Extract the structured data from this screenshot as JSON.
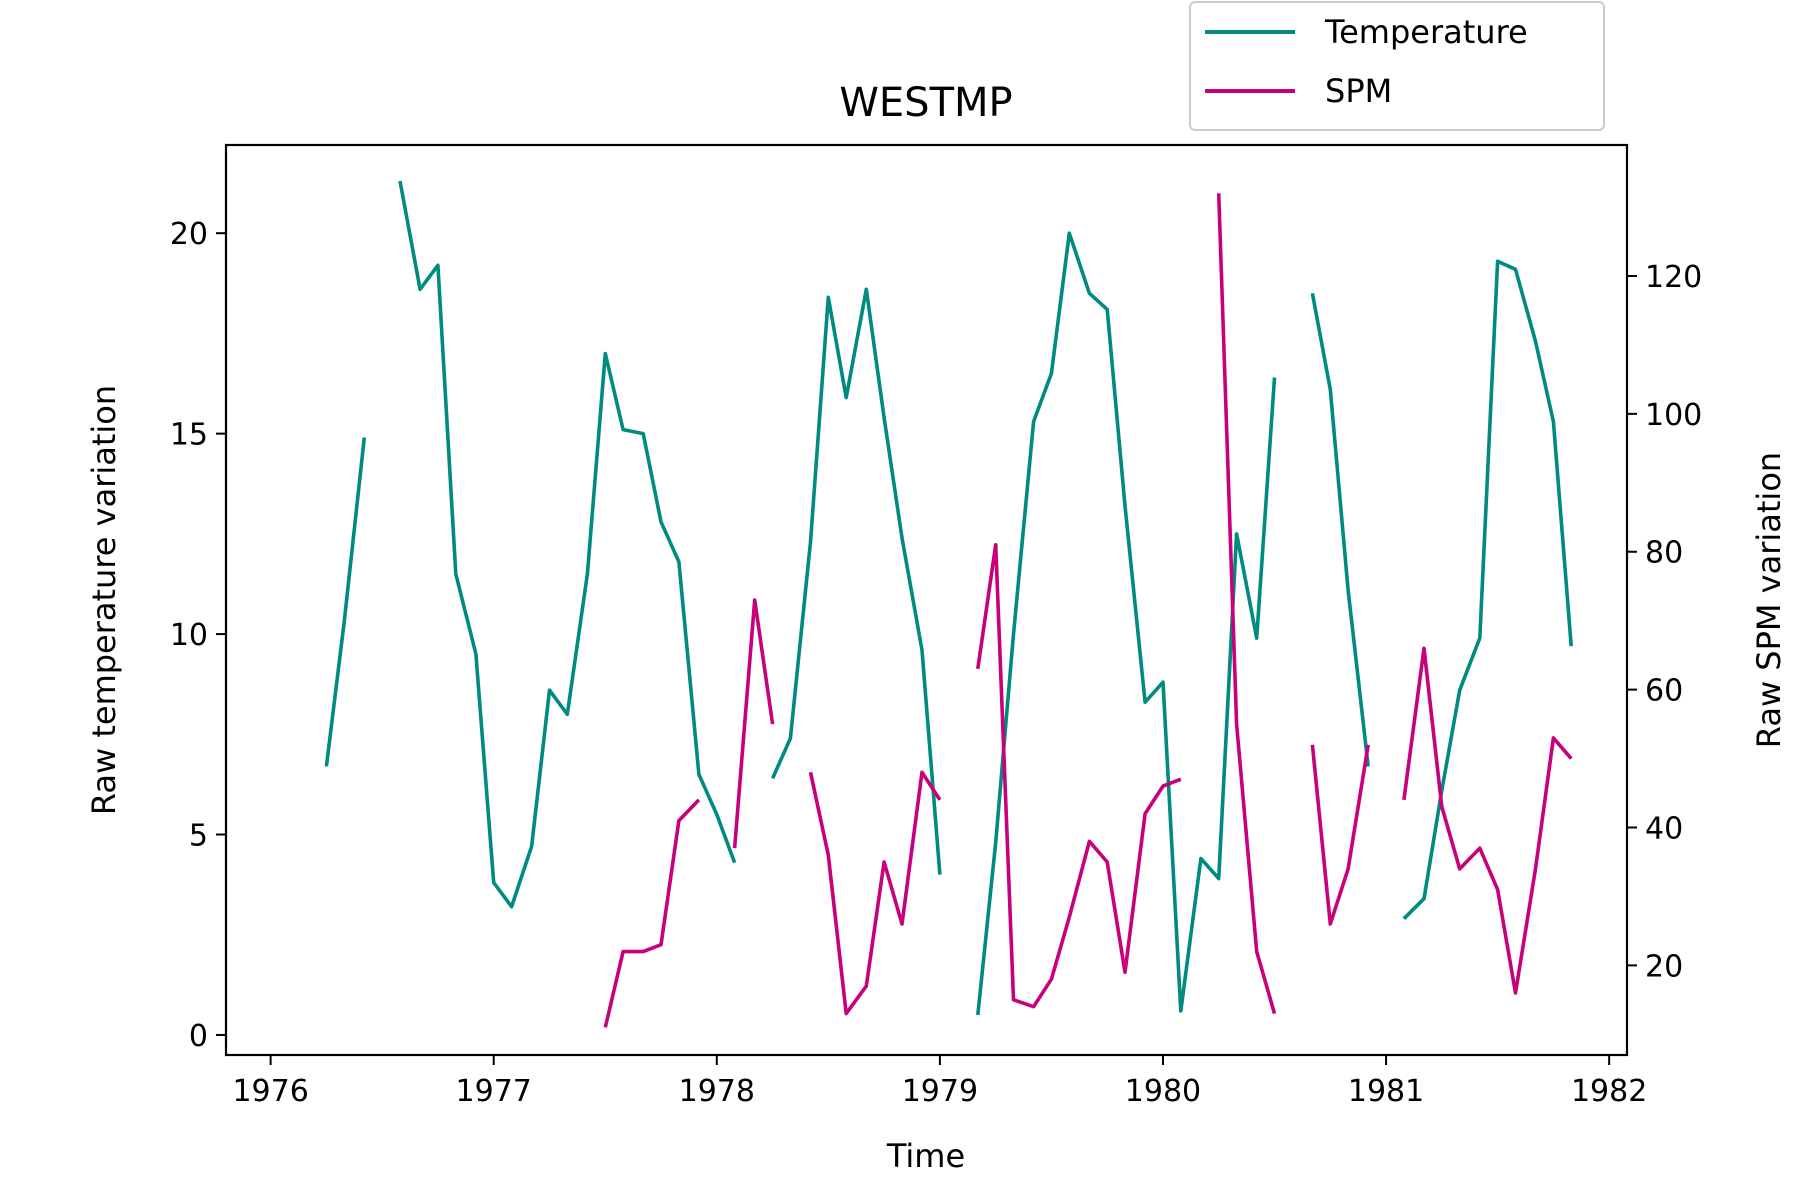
{
  "chart_data": {
    "type": "line",
    "title": "WESTMP",
    "xlabel": "Time",
    "ylabel_left": "Raw temperature variation",
    "ylabel_right": "Raw SPM variation",
    "xlim": [
      1975.8,
      1982.08
    ],
    "ylim_left": [
      -0.5,
      22.2
    ],
    "ylim_right": [
      7,
      139
    ],
    "x_ticks": [
      1976,
      1977,
      1978,
      1979,
      1980,
      1981,
      1982
    ],
    "x_tick_labels": [
      "1976",
      "1977",
      "1978",
      "1979",
      "1980",
      "1981",
      "1982"
    ],
    "y_left_ticks": [
      0,
      5,
      10,
      15,
      20
    ],
    "y_left_tick_labels": [
      "0",
      "5",
      "10",
      "15",
      "20"
    ],
    "y_right_ticks": [
      20,
      40,
      60,
      80,
      100,
      120
    ],
    "y_right_tick_labels": [
      "20",
      "40",
      "60",
      "80",
      "100",
      "120"
    ],
    "grid": false,
    "legend_position": "top-right",
    "series": [
      {
        "name": "Temperature",
        "axis": "left",
        "color": "#008b80",
        "values": [
          [
            1976.25,
            6.7
          ],
          [
            1976.33,
            10.3
          ],
          [
            1976.42,
            14.9
          ],
          [
            1976.5,
            null
          ],
          [
            1976.58,
            21.3
          ],
          [
            1976.67,
            18.6
          ],
          [
            1976.75,
            19.2
          ],
          [
            1976.83,
            11.5
          ],
          [
            1976.92,
            9.5
          ],
          [
            1977.0,
            3.8
          ],
          [
            1977.08,
            3.2
          ],
          [
            1977.17,
            4.7
          ],
          [
            1977.25,
            8.6
          ],
          [
            1977.33,
            8.0
          ],
          [
            1977.42,
            11.5
          ],
          [
            1977.5,
            17.0
          ],
          [
            1977.58,
            15.1
          ],
          [
            1977.67,
            15.0
          ],
          [
            1977.75,
            12.8
          ],
          [
            1977.83,
            11.8
          ],
          [
            1977.92,
            6.5
          ],
          [
            1978.0,
            5.5
          ],
          [
            1978.08,
            4.3
          ],
          [
            1978.17,
            null
          ],
          [
            1978.25,
            6.4
          ],
          [
            1978.33,
            7.4
          ],
          [
            1978.42,
            12.3
          ],
          [
            1978.5,
            18.4
          ],
          [
            1978.58,
            15.9
          ],
          [
            1978.67,
            18.6
          ],
          [
            1978.75,
            15.4
          ],
          [
            1978.83,
            12.4
          ],
          [
            1978.92,
            9.6
          ],
          [
            1979.0,
            4.0
          ],
          [
            1979.08,
            null
          ],
          [
            1979.17,
            0.5
          ],
          [
            1979.25,
            4.8
          ],
          [
            1979.33,
            10.0
          ],
          [
            1979.42,
            15.3
          ],
          [
            1979.5,
            16.5
          ],
          [
            1979.58,
            20.0
          ],
          [
            1979.67,
            18.5
          ],
          [
            1979.75,
            18.1
          ],
          [
            1979.83,
            13.2
          ],
          [
            1979.92,
            8.3
          ],
          [
            1980.0,
            8.8
          ],
          [
            1980.08,
            0.6
          ],
          [
            1980.17,
            4.4
          ],
          [
            1980.25,
            3.9
          ],
          [
            1980.33,
            12.5
          ],
          [
            1980.42,
            9.9
          ],
          [
            1980.5,
            16.4
          ],
          [
            1980.58,
            null
          ],
          [
            1980.67,
            18.5
          ],
          [
            1980.75,
            16.1
          ],
          [
            1980.83,
            11.1
          ],
          [
            1980.92,
            6.7
          ],
          [
            1981.0,
            null
          ],
          [
            1981.08,
            2.9
          ],
          [
            1981.17,
            3.4
          ],
          [
            1981.25,
            6.1
          ],
          [
            1981.33,
            8.6
          ],
          [
            1981.42,
            9.9
          ],
          [
            1981.5,
            19.3
          ],
          [
            1981.58,
            19.1
          ],
          [
            1981.67,
            17.3
          ],
          [
            1981.75,
            15.3
          ],
          [
            1981.83,
            9.7
          ]
        ]
      },
      {
        "name": "SPM",
        "axis": "right",
        "color": "#c8007c",
        "values": [
          [
            1977.5,
            11
          ],
          [
            1977.58,
            22
          ],
          [
            1977.67,
            22
          ],
          [
            1977.75,
            23
          ],
          [
            1977.83,
            41
          ],
          [
            1977.92,
            44
          ],
          [
            1978.0,
            null
          ],
          [
            1978.08,
            37
          ],
          [
            1978.17,
            73
          ],
          [
            1978.25,
            55
          ],
          [
            1978.33,
            null
          ],
          [
            1978.42,
            48
          ],
          [
            1978.5,
            36
          ],
          [
            1978.58,
            13
          ],
          [
            1978.67,
            17
          ],
          [
            1978.75,
            35
          ],
          [
            1978.83,
            26
          ],
          [
            1978.92,
            48
          ],
          [
            1979.0,
            44
          ],
          [
            1979.08,
            null
          ],
          [
            1979.17,
            63
          ],
          [
            1979.25,
            81
          ],
          [
            1979.33,
            15
          ],
          [
            1979.42,
            14
          ],
          [
            1979.5,
            18
          ],
          [
            1979.58,
            27
          ],
          [
            1979.67,
            38
          ],
          [
            1979.75,
            35
          ],
          [
            1979.83,
            19
          ],
          [
            1979.92,
            42
          ],
          [
            1980.0,
            46
          ],
          [
            1980.08,
            47
          ],
          [
            1980.17,
            null
          ],
          [
            1980.25,
            132
          ],
          [
            1980.33,
            55
          ],
          [
            1980.42,
            22
          ],
          [
            1980.5,
            13
          ],
          [
            1980.58,
            null
          ],
          [
            1980.67,
            52
          ],
          [
            1980.75,
            26
          ],
          [
            1980.83,
            34
          ],
          [
            1980.92,
            52
          ],
          [
            1981.0,
            null
          ],
          [
            1981.08,
            44
          ],
          [
            1981.17,
            66
          ],
          [
            1981.25,
            43
          ],
          [
            1981.33,
            34
          ],
          [
            1981.42,
            37
          ],
          [
            1981.5,
            31
          ],
          [
            1981.58,
            16
          ],
          [
            1981.67,
            34
          ],
          [
            1981.75,
            53
          ],
          [
            1981.83,
            50
          ]
        ]
      }
    ]
  }
}
